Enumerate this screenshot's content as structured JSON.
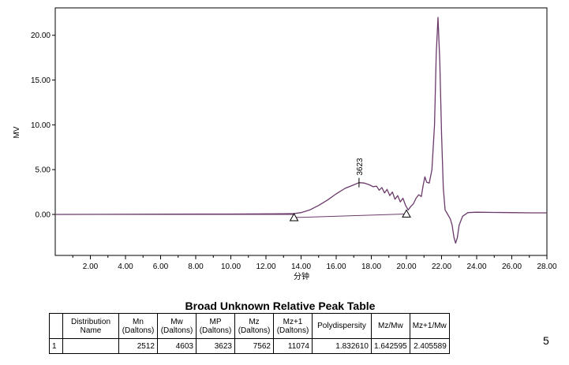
{
  "chart_data": {
    "type": "line",
    "xlabel": "分钟",
    "ylabel": "MV",
    "xlim": [
      0,
      28
    ],
    "ylim": [
      -3.5,
      22.5
    ],
    "xticks": [
      "2.00",
      "4.00",
      "6.00",
      "8.00",
      "10.00",
      "12.00",
      "14.00",
      "16.00",
      "18.00",
      "20.00",
      "22.00",
      "24.00",
      "26.00",
      "28.00"
    ],
    "yticks": [
      "0.00",
      "5.00",
      "10.00",
      "15.00",
      "20.00"
    ],
    "grid": false,
    "series": [
      {
        "color": "#6b3a6b",
        "x": [
          0,
          10,
          12,
          13,
          13.6,
          14,
          14.5,
          15,
          15.5,
          16,
          16.5,
          17,
          17.3,
          17.6,
          17.9,
          18.1,
          18.3,
          18.45,
          18.6,
          18.75,
          18.9,
          19.05,
          19.2,
          19.35,
          19.5,
          19.65,
          19.8,
          19.95,
          20.1,
          20.25,
          20.4,
          20.55,
          20.7,
          20.85,
          20.95,
          21.05,
          21.15,
          21.3,
          21.45,
          21.6,
          21.7,
          21.8,
          21.9,
          22.0,
          22.1,
          22.2,
          22.35,
          22.5,
          22.6,
          22.7,
          22.8,
          22.9,
          23.0,
          23.2,
          23.5,
          24.0,
          25,
          26,
          27,
          28
        ],
        "y": [
          0,
          0.04,
          0.06,
          0.08,
          0.1,
          0.2,
          0.5,
          1.0,
          1.6,
          2.3,
          2.9,
          3.3,
          3.55,
          3.5,
          3.3,
          3.1,
          3.15,
          2.7,
          3.0,
          2.4,
          2.8,
          2.1,
          2.5,
          1.7,
          2.1,
          1.4,
          1.8,
          1.0,
          0.5,
          0.9,
          1.2,
          1.8,
          2.2,
          2.0,
          3.2,
          4.2,
          3.6,
          3.5,
          5.0,
          10.0,
          18.0,
          22.0,
          17.0,
          9.0,
          3.0,
          0.5,
          0.0,
          -0.5,
          -1.2,
          -2.5,
          -3.2,
          -2.6,
          -1.2,
          -0.2,
          0.2,
          0.25,
          0.22,
          0.2,
          0.18,
          0.18
        ]
      }
    ],
    "baseline": {
      "x": [
        13.6,
        20.0
      ],
      "y": [
        -0.35,
        0.05
      ]
    },
    "baseline_markers": [
      13.6,
      20.0
    ],
    "peak_label": {
      "text": "3623",
      "x": 17.3,
      "y": 3.55
    }
  },
  "table": {
    "title": "Broad Unknown Relative Peak Table",
    "headers": [
      [
        "",
        ""
      ],
      [
        "Distribution",
        "Name"
      ],
      [
        "Mn",
        "(Daltons)"
      ],
      [
        "Mw",
        "(Daltons)"
      ],
      [
        "MP",
        "(Daltons)"
      ],
      [
        "Mz",
        "(Daltons)"
      ],
      [
        "Mz+1",
        "(Daltons)"
      ],
      [
        "Polydispersity",
        ""
      ],
      [
        "Mz/Mw",
        ""
      ],
      [
        "Mz+1/Mw",
        ""
      ]
    ],
    "rows": [
      [
        "1",
        "",
        "2512",
        "4603",
        "3623",
        "7562",
        "11074",
        "1.832610",
        "1.642595",
        "2.405589"
      ]
    ]
  },
  "page_number": "5"
}
